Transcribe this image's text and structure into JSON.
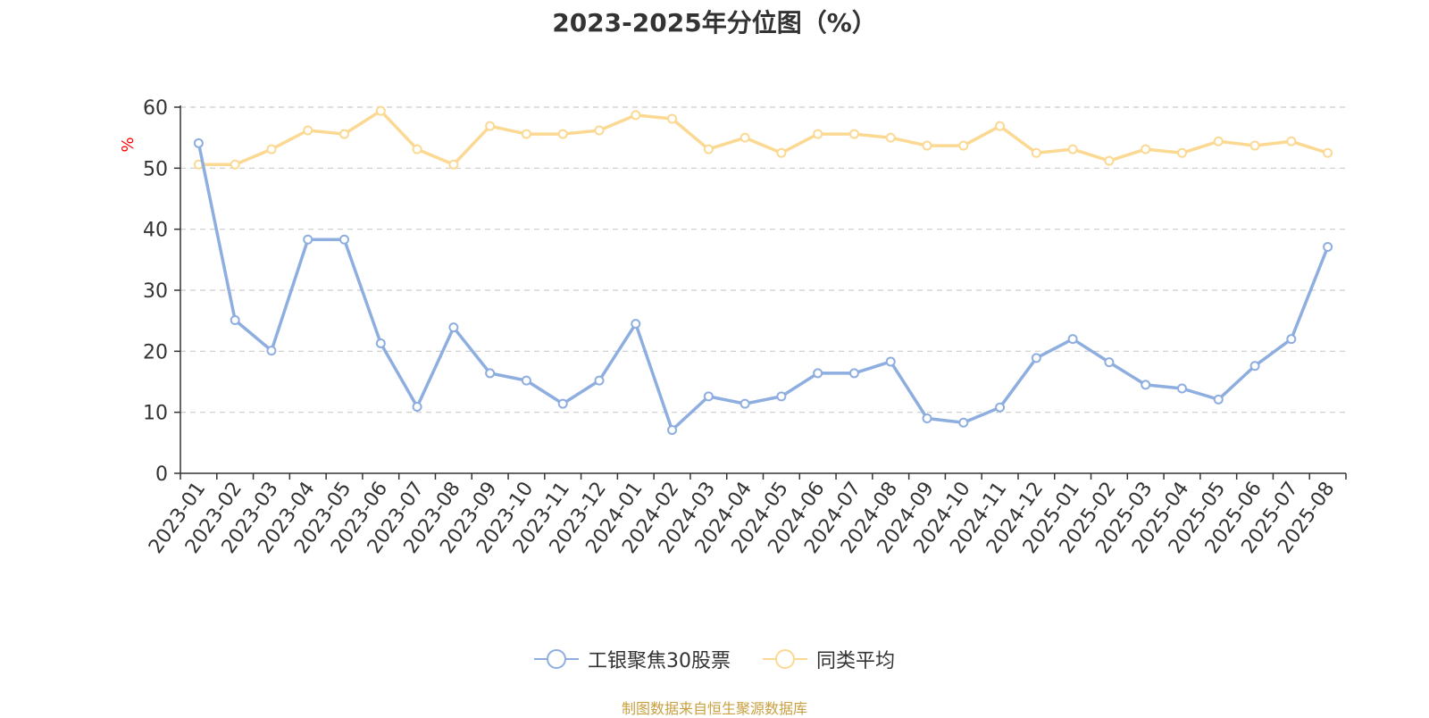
{
  "chart_data": {
    "type": "line",
    "title": "2023-2025年分位图（%）",
    "ylabel": "%",
    "xlabel": "",
    "ylim": [
      0,
      60
    ],
    "yticks": [
      0,
      10,
      20,
      30,
      40,
      50,
      60
    ],
    "grid": true,
    "legend_position": "bottom",
    "categories": [
      "2023-01",
      "2023-02",
      "2023-03",
      "2023-04",
      "2023-05",
      "2023-06",
      "2023-07",
      "2023-08",
      "2023-09",
      "2023-10",
      "2023-11",
      "2023-12",
      "2024-01",
      "2024-02",
      "2024-03",
      "2024-04",
      "2024-05",
      "2024-06",
      "2024-07",
      "2024-08",
      "2024-09",
      "2024-10",
      "2024-11",
      "2024-12",
      "2025-01",
      "2025-02",
      "2025-03",
      "2025-04",
      "2025-05",
      "2025-06",
      "2025-07",
      "2025-08"
    ],
    "series": [
      {
        "name": "工银聚焦30股票",
        "color": "#8eaee0",
        "values": [
          54.1,
          25.1,
          20.1,
          38.3,
          38.3,
          21.3,
          10.9,
          23.9,
          16.4,
          15.2,
          11.4,
          15.2,
          24.5,
          7.1,
          12.6,
          11.4,
          12.6,
          16.4,
          16.4,
          18.3,
          9.0,
          8.3,
          10.8,
          18.9,
          22.0,
          18.2,
          14.5,
          13.9,
          12.1,
          17.6,
          22.0,
          37.1
        ]
      },
      {
        "name": "同类平均",
        "color": "#fbd993",
        "values": [
          50.6,
          50.6,
          53.1,
          56.2,
          55.6,
          59.4,
          53.1,
          50.6,
          56.9,
          55.6,
          55.6,
          56.2,
          58.7,
          58.1,
          53.1,
          55.0,
          52.5,
          55.6,
          55.6,
          55.0,
          53.7,
          53.7,
          56.9,
          52.5,
          53.1,
          51.2,
          53.1,
          52.5,
          54.4,
          53.7,
          54.4,
          52.5
        ]
      }
    ]
  },
  "source_note": "制图数据来自恒生聚源数据库"
}
